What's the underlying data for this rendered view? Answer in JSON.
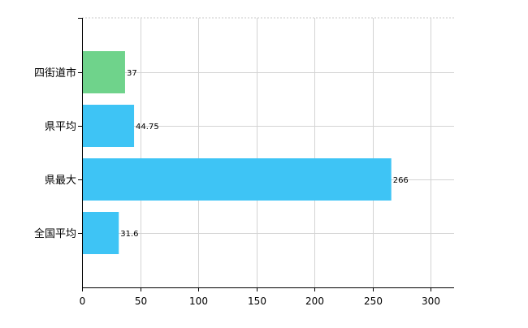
{
  "chart_data": {
    "type": "bar",
    "orientation": "horizontal",
    "categories": [
      "四街道市",
      "県平均",
      "県最大",
      "全国平均"
    ],
    "values": [
      37,
      44.75,
      266,
      31.6
    ],
    "value_labels": [
      "37",
      "44.75",
      "266",
      "31.6"
    ],
    "bar_colors": [
      "#6fd38b",
      "#3ec4f5",
      "#3ec4f5",
      "#3ec4f5"
    ],
    "xlim": [
      0,
      320
    ],
    "x_ticks": [
      0,
      50,
      100,
      150,
      200,
      250,
      300
    ],
    "x_tick_labels": [
      "0",
      "50",
      "100",
      "150",
      "200",
      "250",
      "300"
    ],
    "grid": true,
    "legend": "none",
    "title": "",
    "xlabel": "",
    "ylabel": ""
  },
  "colors": {
    "highlight": "#6fd38b",
    "standard": "#3ec4f5",
    "grid": "#d3d3d3",
    "axis": "#000000"
  }
}
